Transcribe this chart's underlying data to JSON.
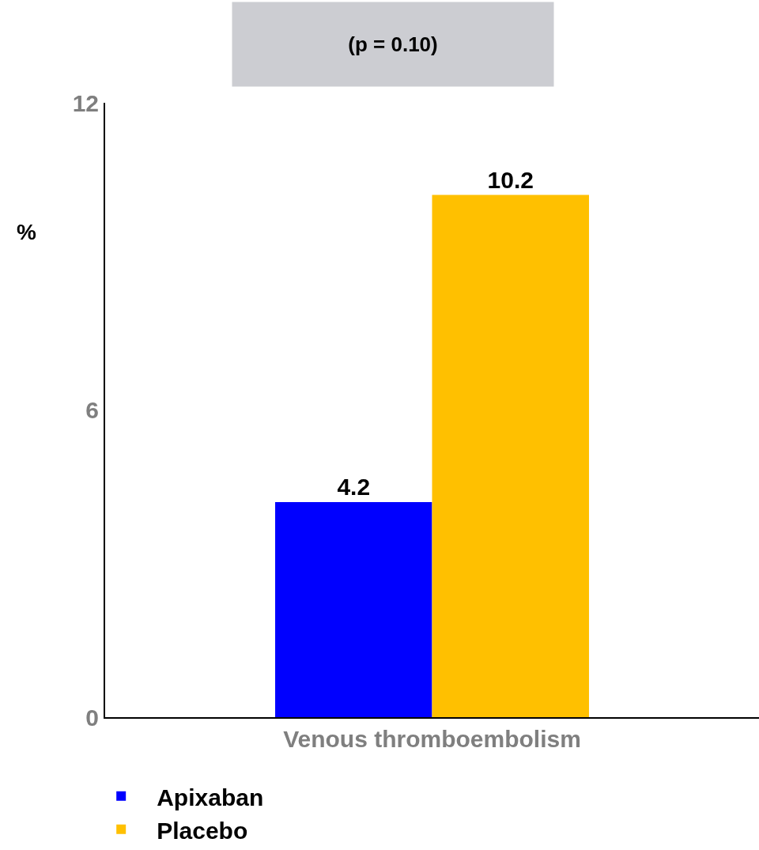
{
  "chart_data": {
    "type": "bar",
    "categories": [
      "Venous thromboembolism"
    ],
    "ylabel": "%",
    "series": [
      {
        "name": "Apixaban",
        "color": "#0000ff",
        "values": [
          4.2
        ]
      },
      {
        "name": "Placebo",
        "color": "#ffc000",
        "values": [
          10.2
        ]
      }
    ],
    "ylim": [
      0,
      12
    ],
    "yticks": [
      0,
      6,
      12
    ],
    "grid": false,
    "legend": "bottom",
    "data_labels": true,
    "annotations": [
      "(p = 0.10)"
    ]
  }
}
